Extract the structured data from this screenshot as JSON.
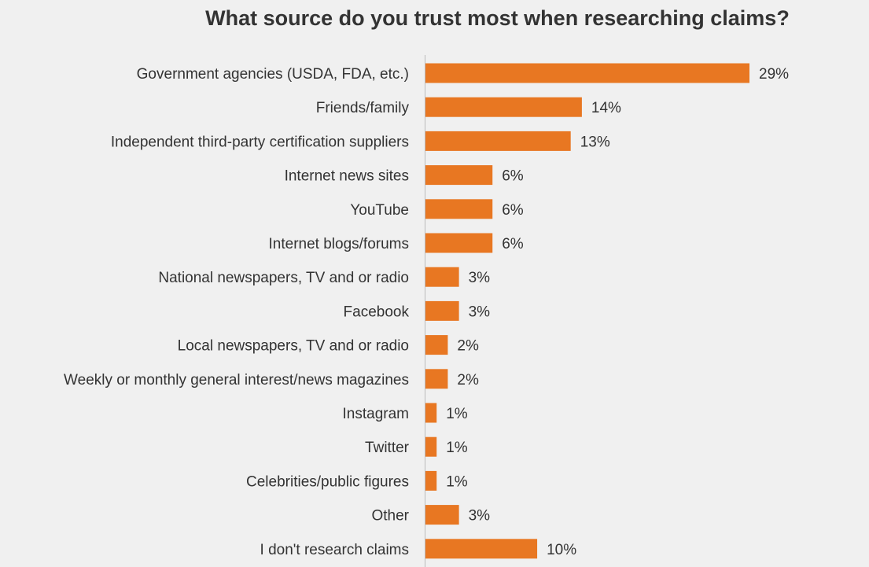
{
  "chart_data": {
    "type": "bar",
    "orientation": "horizontal",
    "title": "What source do you trust most when researching claims?",
    "xlabel": "",
    "ylabel": "",
    "xlim": [
      0,
      29
    ],
    "grid": false,
    "color": "#E87722",
    "categories": [
      "Government agencies (USDA, FDA, etc.)",
      "Friends/family",
      "Independent third-party certification suppliers",
      "Internet news sites",
      "YouTube",
      "Internet blogs/forums",
      "National newspapers, TV and or radio",
      "Facebook",
      "Local newspapers, TV and or radio",
      "Weekly or monthly general interest/news magazines",
      "Instagram",
      "Twitter",
      "Celebrities/public figures",
      "Other",
      "I don't research claims"
    ],
    "values": [
      29,
      14,
      13,
      6,
      6,
      6,
      3,
      3,
      2,
      2,
      1,
      1,
      1,
      3,
      10
    ],
    "data_labels": [
      "29%",
      "14%",
      "13%",
      "6%",
      "6%",
      "6%",
      "3%",
      "3%",
      "2%",
      "2%",
      "1%",
      "1%",
      "1%",
      "3%",
      "10%"
    ]
  }
}
